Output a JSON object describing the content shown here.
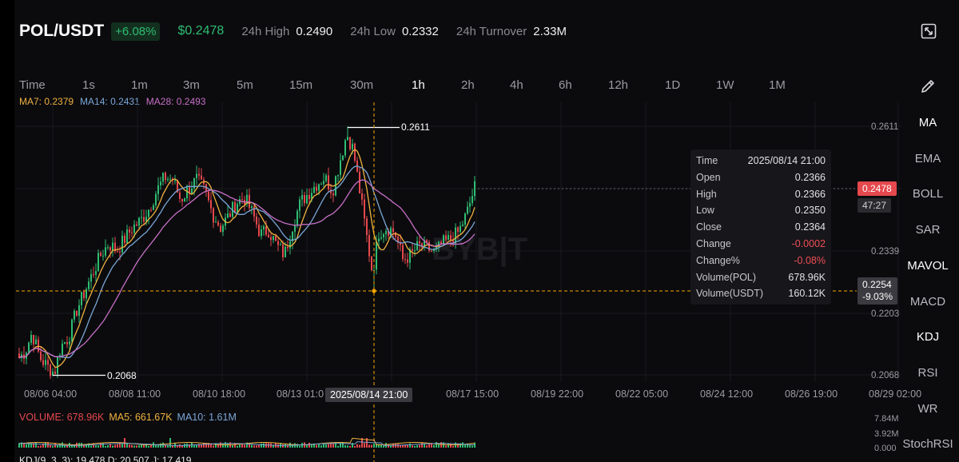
{
  "header": {
    "pair": "POL/USDT",
    "change": "+6.08%",
    "price": "$0.2478",
    "high_label": "24h High",
    "high_value": "0.2490",
    "low_label": "24h Low",
    "low_value": "0.2332",
    "turnover_label": "24h Turnover",
    "turnover_value": "2.33M"
  },
  "timeframes": [
    "Time",
    "1s",
    "1m",
    "3m",
    "5m",
    "15m",
    "30m",
    "1h",
    "2h",
    "4h",
    "6h",
    "12h",
    "1D",
    "1W",
    "1M"
  ],
  "active_timeframe": "1h",
  "ma_legend": {
    "ma7": "MA7: 0.2379",
    "ma14": "MA14: 0.2431",
    "ma28": "MA28: 0.2493"
  },
  "indicators": [
    "MA",
    "EMA",
    "BOLL",
    "SAR",
    "MAVOL",
    "MACD",
    "KDJ",
    "RSI",
    "WR",
    "StochRSI"
  ],
  "price_axis": [
    "0.2611",
    "0.2339",
    "0.2203",
    "0.2068"
  ],
  "time_axis": [
    "08/06 04:00",
    "08/08 11:00",
    "08/10 18:00",
    "08/13 01:0",
    "08/17 15:00",
    "08/19 22:00",
    "08/22 05:00",
    "08/24 12:00",
    "08/26 19:00",
    "08/29 02:00"
  ],
  "crosshair_time": "2025/08/14 21:00",
  "high_marker": "0.2611",
  "low_marker": "0.2068",
  "last_price": {
    "value": "0.2478",
    "countdown": "47:27"
  },
  "cursor_price": {
    "value": "0.2254",
    "pct": "-9.03%"
  },
  "tooltip": [
    {
      "k": "Time",
      "v": "2025/08/14 21:00",
      "red": false
    },
    {
      "k": "Open",
      "v": "0.2366",
      "red": false
    },
    {
      "k": "High",
      "v": "0.2366",
      "red": false
    },
    {
      "k": "Low",
      "v": "0.2350",
      "red": false
    },
    {
      "k": "Close",
      "v": "0.2364",
      "red": false
    },
    {
      "k": "Change",
      "v": "-0.0002",
      "red": true
    },
    {
      "k": "Change%",
      "v": "-0.08%",
      "red": true
    },
    {
      "k": "Volume(POL)",
      "v": "678.96K",
      "red": false
    },
    {
      "k": "Volume(USDT)",
      "v": "160.12K",
      "red": false
    }
  ],
  "volume_legend": {
    "volume": "VOLUME: 678.96K",
    "ma5": "MA5: 661.67K",
    "ma10": "MA10: 1.61M"
  },
  "volume_axis": [
    "7.84M",
    "3.92M",
    "0.000"
  ],
  "kdj_legend": "KDJ(9, 3, 3): 19.478  D: 20.507  J: 17.419",
  "colors": {
    "up": "#2fbd72",
    "down": "#e5484d",
    "accent": "#f7a600",
    "ma7": "#f0b23f",
    "ma14": "#7aa6d6",
    "ma28": "#c66fc4"
  }
}
